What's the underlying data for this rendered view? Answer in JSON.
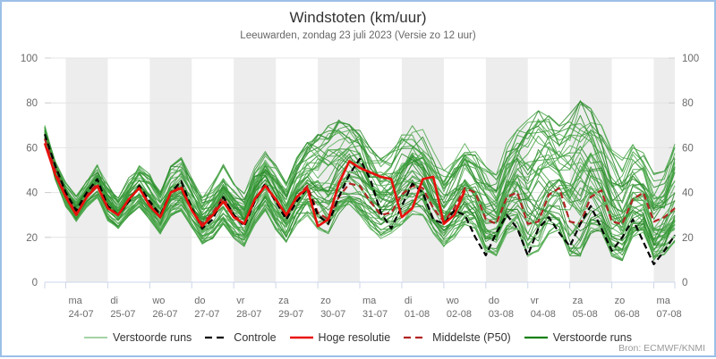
{
  "window": {
    "border_color": "#9cc0e8",
    "background": "#ffffff"
  },
  "header": {
    "title": "Windstoten (km/uur)",
    "subtitle": "Leeuwarden, zondag 23 juli 2023 (Versie zo 12 uur)"
  },
  "source": "Bron: ECMWF/KNMI",
  "legend": [
    {
      "label": "Verstoorde runs",
      "color": "#a5d3a5",
      "dash": "none",
      "width": 2.0
    },
    {
      "label": "Controle",
      "color": "#000000",
      "dash": "8,5",
      "width": 2.2
    },
    {
      "label": "Hoge resolutie",
      "color": "#e8100c",
      "dash": "none",
      "width": 2.6
    },
    {
      "label": "Middelste (P50)",
      "color": "#b22424",
      "dash": "8,5",
      "width": 2.2
    },
    {
      "label": "Verstoorde runs",
      "color": "#0c800c",
      "dash": "none",
      "width": 2.2
    }
  ],
  "chart_data": {
    "type": "line",
    "title": "Windstoten (km/uur)",
    "subtitle": "Leeuwarden, zondag 23 juli 2023 (Versie zo 12 uur)",
    "ylabel": "",
    "xlabel": "",
    "ylim": [
      0,
      100
    ],
    "yticks": [
      0,
      20,
      40,
      60,
      80,
      100
    ],
    "grid": true,
    "legend_position": "bottom",
    "x_start": "zo 23-07 12:00",
    "x_step_hours": 6,
    "n_points": 61,
    "x_days": [
      {
        "day": "ma",
        "date": "24-07"
      },
      {
        "day": "di",
        "date": "25-07"
      },
      {
        "day": "wo",
        "date": "26-07"
      },
      {
        "day": "do",
        "date": "27-07"
      },
      {
        "day": "vr",
        "date": "28-07"
      },
      {
        "day": "za",
        "date": "29-07"
      },
      {
        "day": "zo",
        "date": "30-07"
      },
      {
        "day": "ma",
        "date": "31-07"
      },
      {
        "day": "di",
        "date": "01-08"
      },
      {
        "day": "wo",
        "date": "02-08"
      },
      {
        "day": "do",
        "date": "03-08"
      },
      {
        "day": "vr",
        "date": "04-08"
      },
      {
        "day": "za",
        "date": "05-08"
      },
      {
        "day": "zo",
        "date": "06-08"
      },
      {
        "day": "ma",
        "date": "07-08"
      }
    ],
    "colors": {
      "band": "#ededed",
      "gridline": "#e4e4e4",
      "axis_line": "#ccd6eb",
      "axis_label": "#6b6b6b",
      "member_greens": [
        "#2c8a2c",
        "#3fa03f",
        "#54ad54"
      ],
      "control": "#000000",
      "hires": "#e8100c",
      "p50": "#b22424"
    },
    "series": [
      {
        "name": "Controle",
        "style": "dashed",
        "values": [
          66,
          52,
          40,
          32,
          40,
          46,
          34,
          30,
          36,
          43,
          36,
          30,
          40,
          45,
          33,
          24,
          28,
          38,
          30,
          25,
          36,
          44,
          36,
          28,
          36,
          42,
          30,
          26,
          38,
          48,
          55,
          46,
          31,
          24,
          34,
          44,
          40,
          28,
          26,
          32,
          30,
          20,
          12,
          22,
          30,
          24,
          12,
          24,
          29,
          22,
          16,
          26,
          34,
          24,
          14,
          20,
          28,
          18,
          8,
          14,
          21
        ]
      },
      {
        "name": "Hoge resolutie",
        "style": "solid",
        "values": [
          62,
          48,
          38,
          30,
          38,
          43,
          33,
          30,
          37,
          42,
          34,
          29,
          40,
          42,
          32,
          25,
          30,
          36,
          29,
          26,
          37,
          43,
          37,
          30,
          38,
          42,
          25,
          28,
          44,
          54,
          51,
          49,
          47,
          46,
          29,
          33,
          46,
          47,
          26,
          30,
          41
        ]
      },
      {
        "name": "Middelste (P50)",
        "style": "dashed",
        "values": [
          64,
          50,
          39,
          31,
          39,
          44,
          34,
          30,
          37,
          42,
          35,
          29,
          40,
          43,
          32,
          26,
          31,
          38,
          30,
          26,
          37,
          43,
          36,
          29,
          38,
          43,
          31,
          28,
          38,
          44,
          43,
          36,
          30,
          31,
          39,
          43,
          42,
          33,
          27,
          33,
          42,
          40,
          28,
          26,
          38,
          40,
          26,
          27,
          39,
          42,
          27,
          26,
          38,
          41,
          27,
          26,
          37,
          40,
          27,
          29,
          33
        ]
      }
    ],
    "ensemble": {
      "name": "Verstoorde runs",
      "count": 50,
      "min": [
        64,
        46,
        34,
        27,
        34,
        38,
        28,
        24,
        30,
        34,
        28,
        22,
        30,
        32,
        24,
        17,
        20,
        26,
        20,
        16,
        26,
        32,
        24,
        18,
        26,
        30,
        24,
        22,
        30,
        34,
        30,
        24,
        20,
        22,
        26,
        30,
        30,
        22,
        16,
        20,
        26,
        24,
        14,
        12,
        22,
        24,
        12,
        14,
        22,
        24,
        12,
        12,
        22,
        22,
        12,
        10,
        20,
        22,
        8,
        12,
        18
      ],
      "max": [
        70,
        54,
        44,
        38,
        45,
        52,
        44,
        38,
        46,
        52,
        48,
        40,
        52,
        55,
        46,
        38,
        44,
        52,
        44,
        40,
        52,
        58,
        52,
        44,
        56,
        62,
        66,
        70,
        72,
        70,
        68,
        60,
        55,
        58,
        66,
        70,
        68,
        58,
        50,
        55,
        62,
        58,
        52,
        48,
        62,
        68,
        72,
        76,
        74,
        70,
        76,
        81,
        78,
        70,
        60,
        55,
        62,
        58,
        48,
        50,
        62
      ]
    }
  }
}
